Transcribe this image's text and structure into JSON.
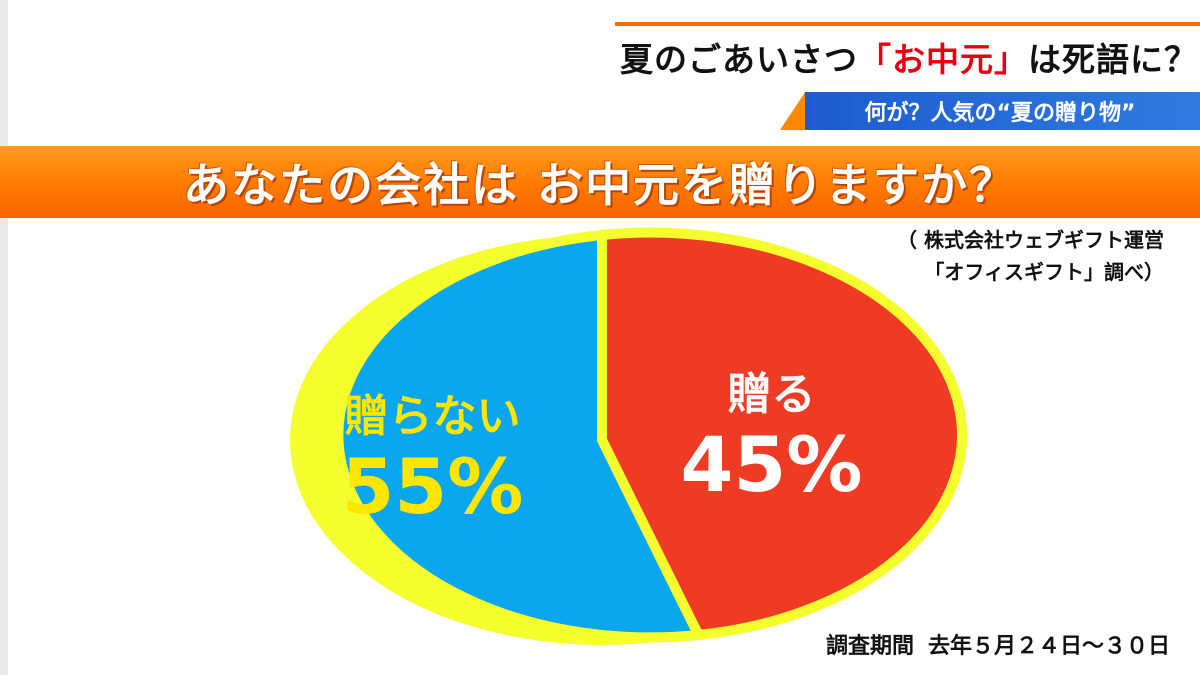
{
  "caption": {
    "main_prefix": "夏のごあいさつ",
    "main_highlight": "「お中元」",
    "main_suffix": "は死語に？",
    "sub": "何が？人気の“夏の贈り物”"
  },
  "source": {
    "line1": "（ 株式会社ウェブギフト運営",
    "line2": "「オフィスギフト」調べ）"
  },
  "survey_period": {
    "label": "調査期間",
    "value": "去年５月２４日～３０日"
  },
  "colors": {
    "no_slice": "#0aa6ee",
    "yes_slice": "#ef3a24",
    "outline": "#f5ff2e",
    "banner": "#ff7a00",
    "no_label": "#ffe600",
    "yes_label": "#ffffff"
  },
  "chart_data": {
    "type": "pie",
    "title": "あなたの会社は お中元を贈りますか？",
    "slices": [
      {
        "label": "贈らない",
        "value": 55,
        "value_text": "55%",
        "color": "#0aa6ee",
        "label_color": "#ffe600"
      },
      {
        "label": "贈る",
        "value": 45,
        "value_text": "45%",
        "color": "#ef3a24",
        "label_color": "#ffffff"
      }
    ]
  }
}
